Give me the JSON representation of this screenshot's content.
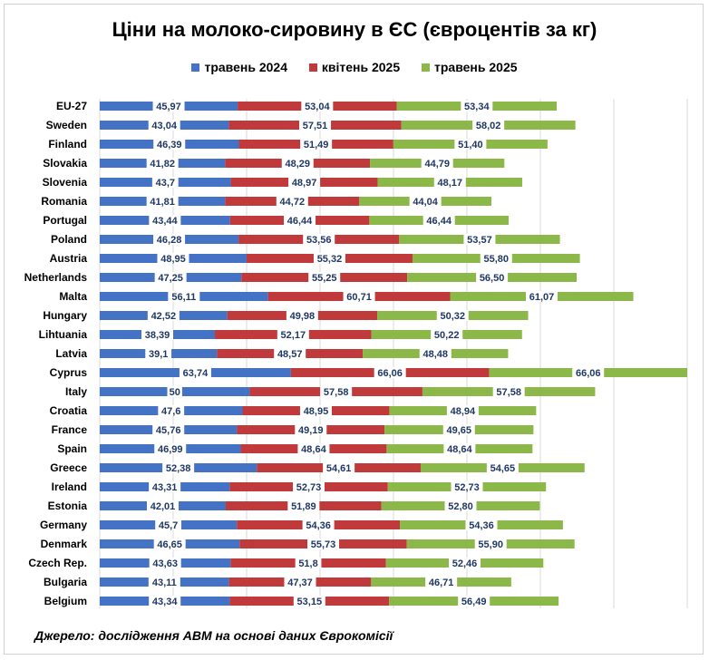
{
  "chart_data": {
    "type": "bar",
    "stacked": true,
    "orientation": "horizontal",
    "title": "Ціни на молоко-сировину в ЄС (євроцентів за кг)",
    "legend_position": "top",
    "grid": true,
    "categories": [
      "EU-27",
      "Sweden",
      "Finland",
      "Slovakia",
      "Slovenia",
      "Romania",
      "Portugal",
      "Poland",
      "Austria",
      "Netherlands",
      "Malta",
      "Hungary",
      "Lihtuania",
      "Latvia",
      "Cyprus",
      "Italy",
      "Croatia",
      "France",
      "Spain",
      "Greece",
      "Ireland",
      "Estonia",
      "Germany",
      "Denmark",
      "Czech Rep.",
      "Bulgaria",
      "Belgium"
    ],
    "series": [
      {
        "name": "травень 2024",
        "color": "#4472c4",
        "values": [
          45.97,
          43.04,
          46.39,
          41.82,
          43.7,
          41.81,
          43.44,
          46.28,
          48.95,
          47.25,
          56.11,
          42.52,
          38.39,
          39.1,
          63.74,
          50,
          47.6,
          45.76,
          46.99,
          52.38,
          43.31,
          42.01,
          45.7,
          46.65,
          43.63,
          43.11,
          43.34
        ],
        "labels": [
          "45,97",
          "43,04",
          "46,39",
          "41,82",
          "43,7",
          "41,81",
          "43,44",
          "46,28",
          "48,95",
          "47,25",
          "56,11",
          "42,52",
          "38,39",
          "39,1",
          "63,74",
          "50",
          "47,6",
          "45,76",
          "46,99",
          "52,38",
          "43,31",
          "42,01",
          "45,7",
          "46,65",
          "43,63",
          "43,11",
          "43,34"
        ]
      },
      {
        "name": "квітень 2025",
        "color": "#c0393b",
        "values": [
          53.04,
          57.51,
          51.49,
          48.29,
          48.97,
          44.72,
          46.44,
          53.56,
          55.32,
          55.25,
          60.71,
          49.98,
          52.17,
          48.57,
          66.06,
          57.58,
          48.95,
          49.19,
          48.64,
          54.61,
          52.73,
          51.89,
          54.36,
          55.73,
          51.8,
          47.37,
          53.15
        ],
        "labels": [
          "53,04",
          "57,51",
          "51,49",
          "48,29",
          "48,97",
          "44,72",
          "46,44",
          "53,56",
          "55,32",
          "55,25",
          "60,71",
          "49,98",
          "52,17",
          "48,57",
          "66,06",
          "57,58",
          "48,95",
          "49,19",
          "48,64",
          "54,61",
          "52,73",
          "51,89",
          "54,36",
          "55,73",
          "51,8",
          "47,37",
          "53,15"
        ]
      },
      {
        "name": "травень 2025",
        "color": "#8cb849",
        "values": [
          53.34,
          58.02,
          51.4,
          44.79,
          48.17,
          44.04,
          46.44,
          53.57,
          55.8,
          56.5,
          61.07,
          50.32,
          50.22,
          48.48,
          66.06,
          57.58,
          48.94,
          49.65,
          48.64,
          54.65,
          52.73,
          52.8,
          54.36,
          55.9,
          52.46,
          46.71,
          56.49
        ],
        "labels": [
          "53,34",
          "58,02",
          "51,40",
          "44,79",
          "48,17",
          "44,04",
          "46,44",
          "53,57",
          "55,80",
          "56,50",
          "61,07",
          "50,32",
          "50,22",
          "48,48",
          "66,06",
          "57,58",
          "48,94",
          "49,65",
          "48,64",
          "54,65",
          "52,73",
          "52,80",
          "54,36",
          "55,90",
          "52,46",
          "46,71",
          "56,49"
        ]
      }
    ]
  },
  "source_text": "Джерело: дослідження АВМ на основі даних Єврокомісії"
}
